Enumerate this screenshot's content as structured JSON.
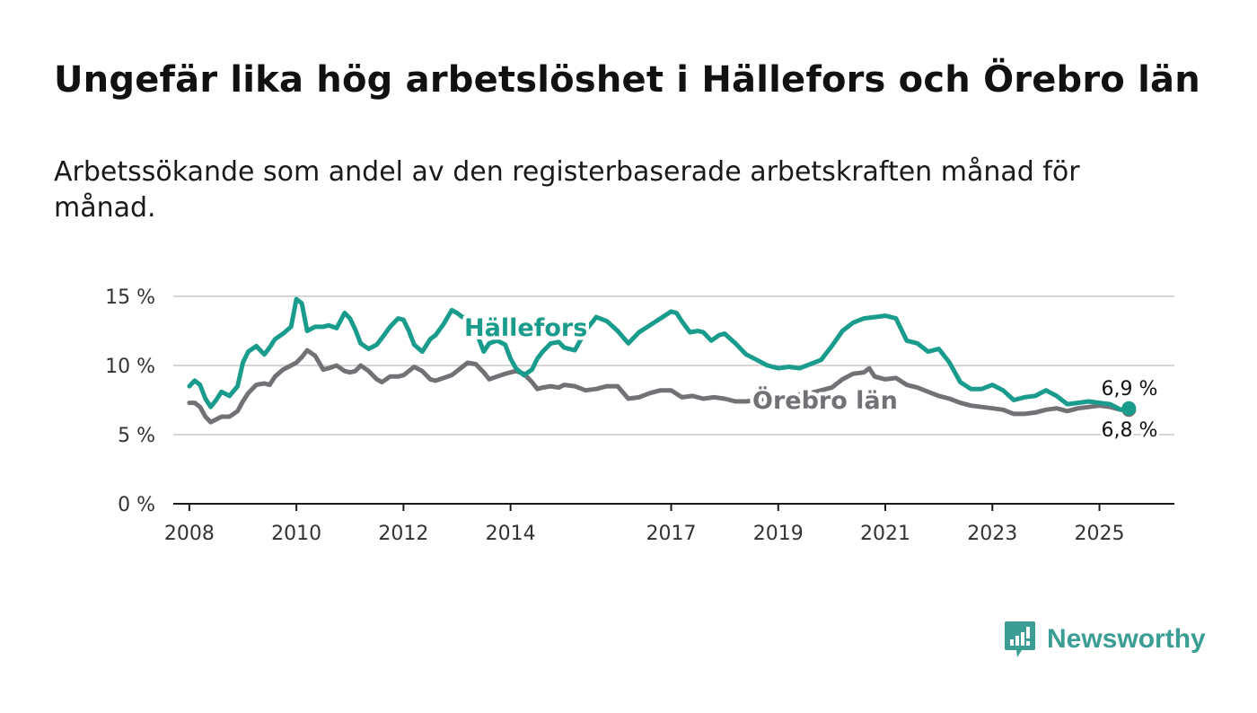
{
  "title": "Ungefär lika hög arbetslöshet i Hällefors och Örebro län",
  "subtitle": "Arbetssökande som andel av den registerbaserade arbetskraften månad för månad.",
  "brand": {
    "name": "Newsworthy",
    "icon": "newsworthy-logo-icon",
    "color": "#3a9e94"
  },
  "chart_data": {
    "type": "line",
    "x_unit": "year",
    "y_unit": "%",
    "ylim": [
      0,
      15
    ],
    "xlim": [
      2007.7,
      2026.4
    ],
    "y_ticks": [
      0,
      5,
      10,
      15
    ],
    "y_tick_labels": [
      "0 %",
      "5 %",
      "10 %",
      "15 %"
    ],
    "x_ticks": [
      2008,
      2010,
      2012,
      2014,
      2017,
      2019,
      2021,
      2023,
      2025
    ],
    "x_tick_labels": [
      "2008",
      "2010",
      "2012",
      "2014",
      "2017",
      "2019",
      "2021",
      "2023",
      "2025"
    ],
    "grid": true,
    "series": [
      {
        "name": "Örebro län",
        "color": "#737076",
        "end_label": "6,8 %",
        "x": [
          2008.0,
          2008.1,
          2008.2,
          2008.3,
          2008.4,
          2008.5,
          2008.6,
          2008.75,
          2008.9,
          2009.0,
          2009.1,
          2009.25,
          2009.4,
          2009.5,
          2009.6,
          2009.75,
          2009.9,
          2010.0,
          2010.1,
          2010.2,
          2010.35,
          2010.5,
          2010.6,
          2010.75,
          2010.9,
          2011.0,
          2011.1,
          2011.2,
          2011.35,
          2011.5,
          2011.6,
          2011.75,
          2011.9,
          2012.0,
          2012.1,
          2012.2,
          2012.35,
          2012.5,
          2012.6,
          2012.75,
          2012.9,
          2013.0,
          2013.1,
          2013.2,
          2013.35,
          2013.5,
          2013.6,
          2013.75,
          2013.9,
          2014.0,
          2014.1,
          2014.25,
          2014.4,
          2014.5,
          2014.6,
          2014.75,
          2014.9,
          2015.0,
          2015.2,
          2015.4,
          2015.6,
          2015.8,
          2016.0,
          2016.2,
          2016.4,
          2016.6,
          2016.8,
          2017.0,
          2017.2,
          2017.4,
          2017.6,
          2017.8,
          2018.0,
          2018.2,
          2018.4,
          2018.6,
          2018.8,
          2019.0,
          2019.2,
          2019.4,
          2019.6,
          2019.8,
          2020.0,
          2020.2,
          2020.4,
          2020.6,
          2020.7,
          2020.8,
          2021.0,
          2021.2,
          2021.4,
          2021.6,
          2021.8,
          2022.0,
          2022.2,
          2022.4,
          2022.6,
          2022.8,
          2023.0,
          2023.2,
          2023.4,
          2023.6,
          2023.8,
          2024.0,
          2024.2,
          2024.4,
          2024.6,
          2024.8,
          2025.0,
          2025.2,
          2025.4,
          2025.55
        ],
        "y": [
          7.3,
          7.3,
          7.0,
          6.3,
          5.9,
          6.1,
          6.3,
          6.3,
          6.7,
          7.4,
          8.0,
          8.6,
          8.7,
          8.6,
          9.2,
          9.7,
          10.0,
          10.2,
          10.6,
          11.1,
          10.7,
          9.7,
          9.8,
          10.0,
          9.6,
          9.5,
          9.6,
          10.0,
          9.6,
          9.0,
          8.8,
          9.2,
          9.2,
          9.3,
          9.6,
          9.9,
          9.6,
          9.0,
          8.9,
          9.1,
          9.3,
          9.6,
          9.9,
          10.2,
          10.1,
          9.5,
          9.0,
          9.2,
          9.4,
          9.5,
          9.6,
          9.4,
          8.8,
          8.3,
          8.4,
          8.5,
          8.4,
          8.6,
          8.5,
          8.2,
          8.3,
          8.5,
          8.5,
          7.6,
          7.7,
          8.0,
          8.2,
          8.2,
          7.7,
          7.8,
          7.6,
          7.7,
          7.6,
          7.4,
          7.4,
          7.5,
          7.6,
          7.7,
          7.8,
          7.9,
          8.0,
          8.2,
          8.4,
          9.0,
          9.4,
          9.5,
          9.8,
          9.2,
          9.0,
          9.1,
          8.6,
          8.4,
          8.1,
          7.8,
          7.6,
          7.3,
          7.1,
          7.0,
          6.9,
          6.8,
          6.5,
          6.5,
          6.6,
          6.8,
          6.9,
          6.7,
          6.9,
          7.0,
          7.1,
          7.0,
          6.8,
          6.8
        ]
      },
      {
        "name": "Hällefors",
        "color": "#1a9c8c",
        "end_label": "6,9 %",
        "x": [
          2008.0,
          2008.1,
          2008.2,
          2008.3,
          2008.4,
          2008.5,
          2008.6,
          2008.75,
          2008.9,
          2009.0,
          2009.1,
          2009.25,
          2009.4,
          2009.5,
          2009.6,
          2009.75,
          2009.9,
          2010.0,
          2010.1,
          2010.2,
          2010.35,
          2010.5,
          2010.6,
          2010.75,
          2010.9,
          2011.0,
          2011.1,
          2011.2,
          2011.35,
          2011.5,
          2011.6,
          2011.75,
          2011.9,
          2012.0,
          2012.1,
          2012.2,
          2012.35,
          2012.5,
          2012.6,
          2012.75,
          2012.9,
          2013.0,
          2013.1,
          2013.2,
          2013.35,
          2013.5,
          2013.6,
          2013.75,
          2013.9,
          2014.0,
          2014.1,
          2014.25,
          2014.4,
          2014.5,
          2014.6,
          2014.75,
          2014.9,
          2015.0,
          2015.2,
          2015.4,
          2015.6,
          2015.8,
          2016.0,
          2016.2,
          2016.4,
          2016.6,
          2016.8,
          2017.0,
          2017.1,
          2017.2,
          2017.35,
          2017.5,
          2017.6,
          2017.75,
          2017.9,
          2018.0,
          2018.2,
          2018.4,
          2018.6,
          2018.8,
          2019.0,
          2019.2,
          2019.4,
          2019.6,
          2019.8,
          2020.0,
          2020.2,
          2020.4,
          2020.6,
          2020.8,
          2021.0,
          2021.2,
          2021.4,
          2021.6,
          2021.8,
          2022.0,
          2022.2,
          2022.4,
          2022.6,
          2022.8,
          2023.0,
          2023.2,
          2023.4,
          2023.6,
          2023.8,
          2024.0,
          2024.2,
          2024.4,
          2024.6,
          2024.8,
          2025.0,
          2025.2,
          2025.4,
          2025.55
        ],
        "y": [
          8.5,
          8.9,
          8.6,
          7.6,
          7.0,
          7.5,
          8.1,
          7.8,
          8.5,
          10.2,
          11.0,
          11.4,
          10.8,
          11.3,
          11.9,
          12.3,
          12.8,
          14.8,
          14.5,
          12.5,
          12.8,
          12.8,
          12.9,
          12.7,
          13.8,
          13.4,
          12.6,
          11.6,
          11.2,
          11.5,
          12.0,
          12.8,
          13.4,
          13.3,
          12.5,
          11.5,
          11.0,
          11.9,
          12.2,
          13.0,
          14.0,
          13.8,
          13.5,
          13.5,
          12.5,
          11.0,
          11.6,
          11.8,
          11.5,
          10.5,
          9.8,
          9.3,
          9.7,
          10.5,
          11.0,
          11.6,
          11.7,
          11.3,
          11.1,
          12.5,
          13.5,
          13.2,
          12.5,
          11.6,
          12.4,
          12.9,
          13.4,
          13.9,
          13.8,
          13.2,
          12.4,
          12.5,
          12.4,
          11.8,
          12.2,
          12.3,
          11.6,
          10.8,
          10.4,
          10.0,
          9.8,
          9.9,
          9.8,
          10.1,
          10.4,
          11.4,
          12.5,
          13.1,
          13.4,
          13.5,
          13.6,
          13.4,
          11.8,
          11.6,
          11.0,
          11.2,
          10.2,
          8.8,
          8.3,
          8.3,
          8.6,
          8.2,
          7.5,
          7.7,
          7.8,
          8.2,
          7.8,
          7.2,
          7.3,
          7.4,
          7.3,
          7.2,
          6.8,
          6.9
        ]
      }
    ]
  }
}
